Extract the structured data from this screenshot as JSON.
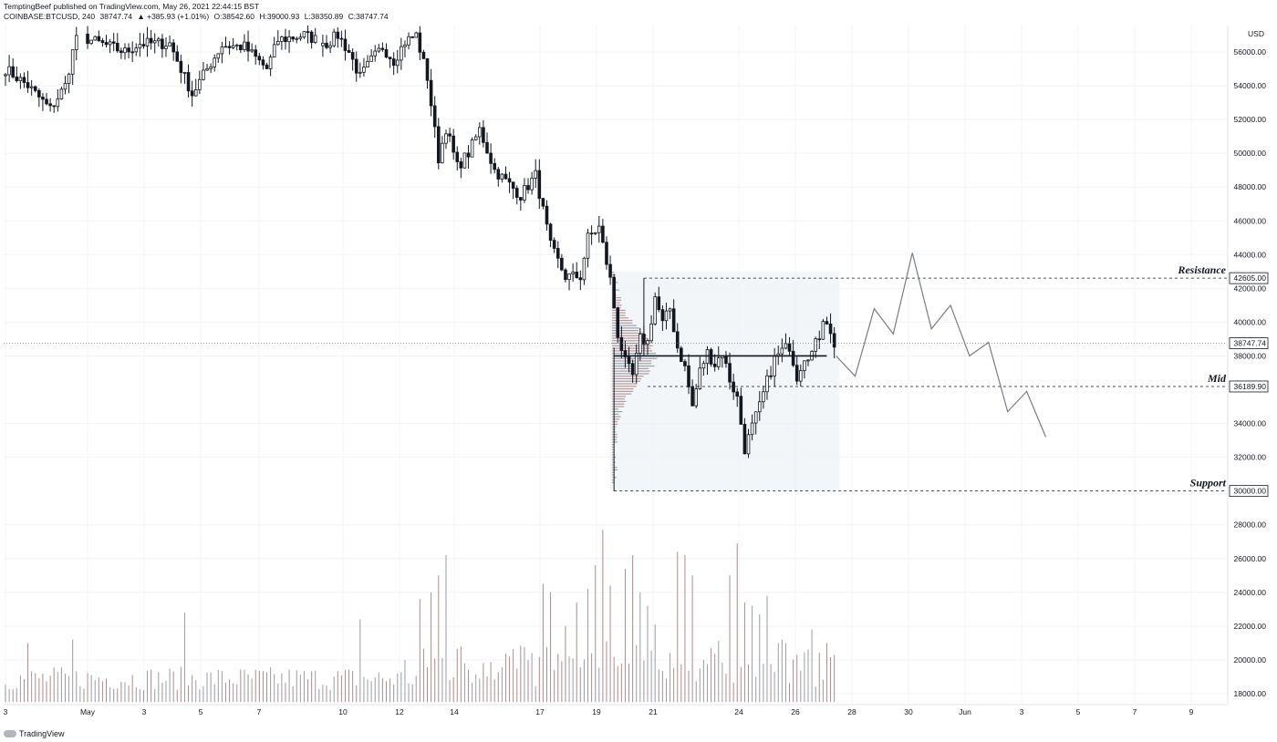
{
  "header": {
    "line1": "TemptingBeef published on TradingView.com, May 26, 2021 22:44:15 BST",
    "symbol": "COINBASE:BTCUSD, 240",
    "last": "38747.74",
    "change": "▲ +385.93 (+1.01%)",
    "open": "O:38542.60",
    "high": "H:39000.93",
    "low": "L:38350.89",
    "close": "C:38747.74"
  },
  "footer": {
    "brand": "TradingView"
  },
  "chart_data": {
    "type": "candlestick",
    "currency": "USD",
    "y_ticks": [
      "56000.00",
      "54000.00",
      "52000.00",
      "50000.00",
      "48000.00",
      "46000.00",
      "44000.00",
      "42000.00",
      "40000.00",
      "38000.00",
      "34000.00",
      "32000.00",
      "28000.00",
      "26000.00",
      "24000.00",
      "22000.00",
      "20000.00",
      "18000.00"
    ],
    "x_ticks": [
      "3",
      "May",
      "3",
      "5",
      "7",
      "10",
      "12",
      "14",
      "17",
      "19",
      "21",
      "24",
      "26",
      "28",
      "30",
      "Jun",
      "3",
      "5",
      "7",
      "9"
    ],
    "price_tags": [
      {
        "label": "Resistance",
        "value": "42605.00"
      },
      {
        "label": "",
        "value": "38747.74"
      },
      {
        "label": "Mid",
        "value": "36189.90"
      },
      {
        "label": "Support",
        "value": "30000.00"
      }
    ],
    "poc_level": 38000,
    "projection": [
      38000,
      36800,
      40800,
      39300,
      44100,
      39600,
      41000,
      38000,
      38800,
      34700,
      35900,
      33200
    ],
    "anchors": [
      [
        0,
        55000
      ],
      [
        6,
        54000
      ],
      [
        12,
        52600
      ],
      [
        16,
        54000
      ],
      [
        19,
        57000
      ],
      [
        32,
        56000
      ],
      [
        36,
        56500
      ],
      [
        44,
        56500
      ],
      [
        50,
        53500
      ],
      [
        54,
        55000
      ],
      [
        58,
        56400
      ],
      [
        64,
        56300
      ],
      [
        70,
        55000
      ],
      [
        73,
        56700
      ],
      [
        80,
        57000
      ],
      [
        86,
        56500
      ],
      [
        89,
        57000
      ],
      [
        92,
        56000
      ],
      [
        95,
        54500
      ],
      [
        98,
        55500
      ],
      [
        101,
        56300
      ],
      [
        104,
        55500
      ],
      [
        107,
        56600
      ],
      [
        110,
        57000
      ],
      [
        113,
        54500
      ],
      [
        116,
        49700
      ],
      [
        118,
        51500
      ],
      [
        121,
        49200
      ],
      [
        124,
        50000
      ],
      [
        127,
        51400
      ],
      [
        131,
        49000
      ],
      [
        138,
        47500
      ],
      [
        142,
        48700
      ],
      [
        146,
        44500
      ],
      [
        150,
        42700
      ],
      [
        154,
        42700
      ],
      [
        156,
        45000
      ],
      [
        159,
        45600
      ],
      [
        162,
        42500
      ],
      [
        164,
        39300
      ],
      [
        166,
        37600
      ],
      [
        168,
        36800
      ],
      [
        170,
        39000
      ],
      [
        172,
        38800
      ],
      [
        174,
        41500
      ],
      [
        176,
        39900
      ],
      [
        178,
        40800
      ],
      [
        180,
        38500
      ],
      [
        182,
        37300
      ],
      [
        184,
        35000
      ],
      [
        186,
        37100
      ],
      [
        188,
        38200
      ],
      [
        190,
        37500
      ],
      [
        192,
        38200
      ],
      [
        194,
        36600
      ],
      [
        196,
        35500
      ],
      [
        198,
        32500
      ],
      [
        200,
        33800
      ],
      [
        202,
        35000
      ],
      [
        204,
        36500
      ],
      [
        206,
        37800
      ],
      [
        208,
        38300
      ],
      [
        210,
        38600
      ],
      [
        212,
        36800
      ],
      [
        214,
        38000
      ],
      [
        216,
        38200
      ],
      [
        218,
        39200
      ],
      [
        219,
        40300
      ],
      [
        220,
        40100
      ],
      [
        221,
        39200
      ],
      [
        222,
        38700
      ]
    ],
    "volume_spikes": [
      [
        6,
        21000
      ],
      [
        18,
        21200
      ],
      [
        48,
        22800
      ],
      [
        95,
        22400
      ],
      [
        107,
        20000
      ],
      [
        111,
        23600
      ],
      [
        114,
        24000
      ],
      [
        116,
        25000
      ],
      [
        118,
        26200
      ],
      [
        122,
        20800
      ],
      [
        140,
        20000
      ],
      [
        144,
        24500
      ],
      [
        146,
        24000
      ],
      [
        150,
        22000
      ],
      [
        153,
        23400
      ],
      [
        156,
        24200
      ],
      [
        158,
        25600
      ],
      [
        160,
        27700
      ],
      [
        162,
        24400
      ],
      [
        166,
        25400
      ],
      [
        168,
        26200
      ],
      [
        170,
        24000
      ],
      [
        172,
        23200
      ],
      [
        174,
        22100
      ],
      [
        180,
        26400
      ],
      [
        182,
        26200
      ],
      [
        184,
        25000
      ],
      [
        194,
        25000
      ],
      [
        196,
        26900
      ],
      [
        198,
        23400
      ],
      [
        200,
        23200
      ],
      [
        202,
        22700
      ],
      [
        204,
        23800
      ],
      [
        208,
        21200
      ],
      [
        212,
        20300
      ],
      [
        216,
        21800
      ],
      [
        220,
        21000
      ]
    ]
  }
}
